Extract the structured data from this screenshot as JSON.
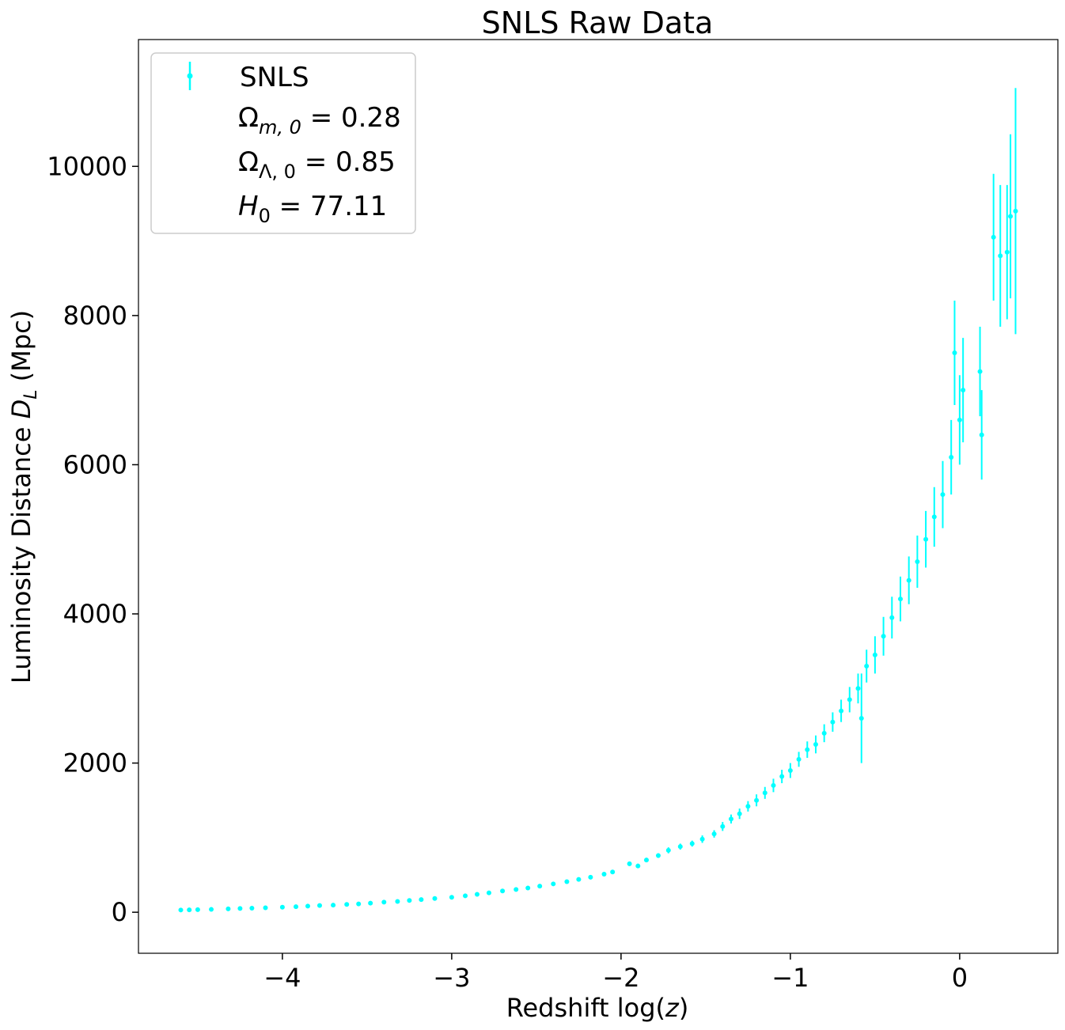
{
  "chart_data": {
    "type": "scatter",
    "title": "SNLS Raw Data",
    "xlabel": "Redshift log(z)",
    "ylabel": "Luminosity Distance D_L (Mpc)",
    "xlim": [
      -4.85,
      0.58
    ],
    "ylim": [
      -550,
      11700
    ],
    "xticks": [
      -4,
      -3,
      -2,
      -1,
      0
    ],
    "xtick_labels": [
      "−4",
      "−3",
      "−2",
      "−1",
      "0"
    ],
    "yticks": [
      0,
      2000,
      4000,
      6000,
      8000,
      10000
    ],
    "ytick_labels": [
      "0",
      "2000",
      "4000",
      "6000",
      "8000",
      "10000"
    ],
    "grid": false,
    "legend_placement": "top-left",
    "series": [
      {
        "name": "SNLS",
        "color": "#00ffff",
        "marker": "point-with-errorbar",
        "points": [
          [
            -4.6,
            30,
            15
          ],
          [
            -4.55,
            32,
            15
          ],
          [
            -4.5,
            35,
            15
          ],
          [
            -4.42,
            38,
            15
          ],
          [
            -4.32,
            45,
            15
          ],
          [
            -4.25,
            50,
            15
          ],
          [
            -4.18,
            55,
            15
          ],
          [
            -4.1,
            60,
            15
          ],
          [
            -4.0,
            68,
            15
          ],
          [
            -3.92,
            75,
            15
          ],
          [
            -3.85,
            82,
            15
          ],
          [
            -3.78,
            90,
            15
          ],
          [
            -3.7,
            95,
            15
          ],
          [
            -3.62,
            105,
            15
          ],
          [
            -3.55,
            112,
            15
          ],
          [
            -3.48,
            122,
            15
          ],
          [
            -3.4,
            135,
            15
          ],
          [
            -3.32,
            145,
            15
          ],
          [
            -3.25,
            158,
            15
          ],
          [
            -3.18,
            170,
            15
          ],
          [
            -3.1,
            185,
            15
          ],
          [
            -3.0,
            200,
            15
          ],
          [
            -2.92,
            220,
            15
          ],
          [
            -2.85,
            240,
            15
          ],
          [
            -2.78,
            260,
            15
          ],
          [
            -2.7,
            285,
            20
          ],
          [
            -2.62,
            305,
            20
          ],
          [
            -2.55,
            325,
            20
          ],
          [
            -2.48,
            350,
            20
          ],
          [
            -2.4,
            380,
            20
          ],
          [
            -2.32,
            410,
            20
          ],
          [
            -2.25,
            440,
            20
          ],
          [
            -2.18,
            470,
            20
          ],
          [
            -2.1,
            510,
            25
          ],
          [
            -2.05,
            540,
            25
          ],
          [
            -1.95,
            650,
            30
          ],
          [
            -1.9,
            620,
            30
          ],
          [
            -1.85,
            700,
            30
          ],
          [
            -1.78,
            760,
            30
          ],
          [
            -1.72,
            830,
            40
          ],
          [
            -1.65,
            880,
            40
          ],
          [
            -1.58,
            920,
            40
          ],
          [
            -1.52,
            980,
            50
          ],
          [
            -1.45,
            1050,
            50
          ],
          [
            -1.4,
            1150,
            60
          ],
          [
            -1.35,
            1250,
            60
          ],
          [
            -1.3,
            1320,
            70
          ],
          [
            -1.25,
            1420,
            70
          ],
          [
            -1.2,
            1500,
            80
          ],
          [
            -1.15,
            1600,
            80
          ],
          [
            -1.1,
            1700,
            90
          ],
          [
            -1.05,
            1820,
            90
          ],
          [
            -1.0,
            1900,
            100
          ],
          [
            -0.95,
            2050,
            100
          ],
          [
            -0.9,
            2180,
            110
          ],
          [
            -0.85,
            2250,
            120
          ],
          [
            -0.8,
            2400,
            120
          ],
          [
            -0.75,
            2550,
            130
          ],
          [
            -0.7,
            2700,
            150
          ],
          [
            -0.65,
            2850,
            170
          ],
          [
            -0.6,
            3000,
            200
          ],
          [
            -0.58,
            2600,
            600
          ],
          [
            -0.55,
            3300,
            220
          ],
          [
            -0.5,
            3450,
            250
          ],
          [
            -0.45,
            3700,
            260
          ],
          [
            -0.4,
            3950,
            280
          ],
          [
            -0.35,
            4200,
            300
          ],
          [
            -0.3,
            4450,
            320
          ],
          [
            -0.25,
            4700,
            350
          ],
          [
            -0.2,
            5000,
            380
          ],
          [
            -0.15,
            5300,
            400
          ],
          [
            -0.1,
            5600,
            450
          ],
          [
            -0.05,
            6100,
            500
          ],
          [
            -0.03,
            7500,
            700
          ],
          [
            0.0,
            6600,
            600
          ],
          [
            0.02,
            7000,
            700
          ],
          [
            0.12,
            7250,
            600
          ],
          [
            0.13,
            6400,
            600
          ],
          [
            0.2,
            9050,
            850
          ],
          [
            0.24,
            8800,
            950
          ],
          [
            0.28,
            8850,
            900
          ],
          [
            0.3,
            9330,
            1100
          ],
          [
            0.33,
            9400,
            1650
          ]
        ]
      }
    ],
    "legend": {
      "entries": [
        {
          "label": "SNLS",
          "marker": "point-with-errorbar"
        },
        {
          "symbol": "Ω",
          "subscript": "m, 0",
          "text": " =  0.28"
        },
        {
          "symbol": "Ω",
          "subscript": "Λ, 0",
          "text": " =  0.85"
        },
        {
          "symbol": "H",
          "subscript": "0",
          "text": " =  77.11"
        }
      ]
    }
  }
}
